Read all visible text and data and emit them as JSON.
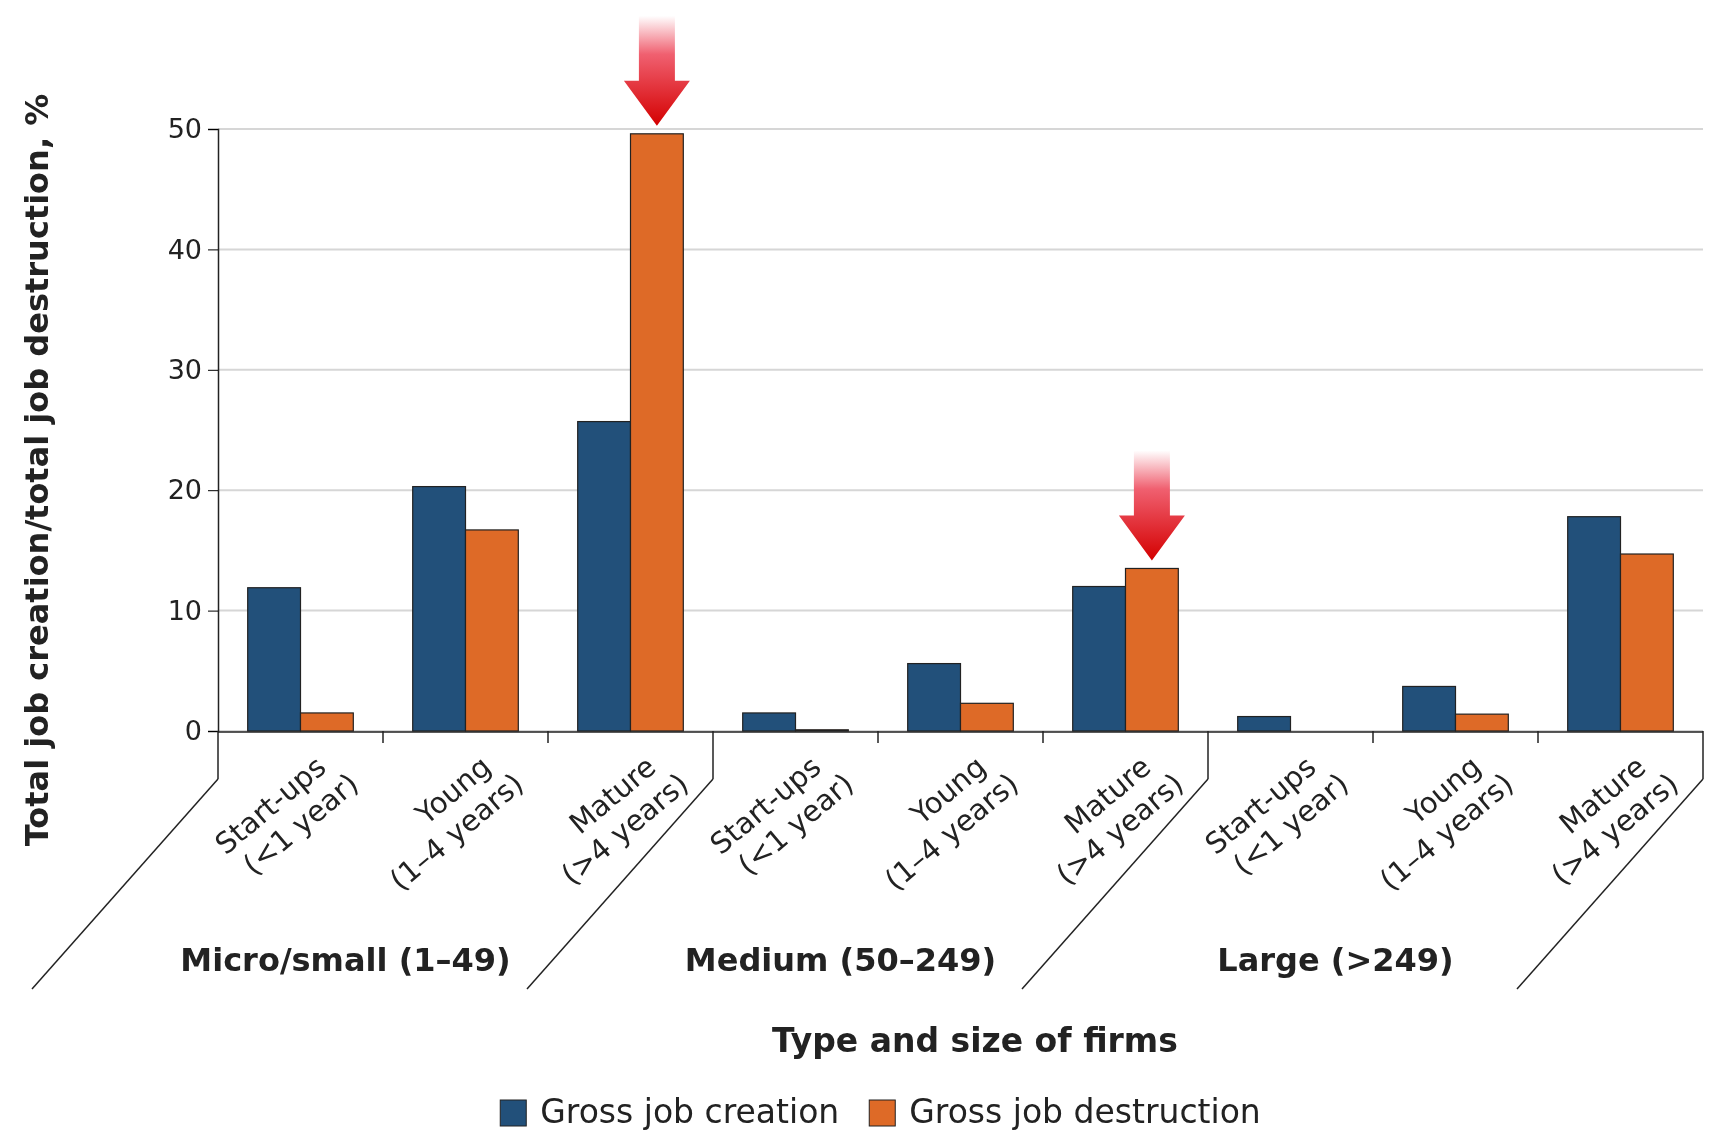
{
  "chart_data": {
    "type": "bar",
    "xlabel": "Type and size of firms",
    "ylabel": "Total job creation/total job destruction, %",
    "categories": [
      "Start-ups (<1 year)",
      "Young (1–4 years)",
      "Mature (>4 years)",
      "Start-ups (<1 year)",
      "Young (1–4 years)",
      "Mature (>4 years)",
      "Start-ups (<1 year)",
      "Young (1–4 years)",
      "Mature (>4 years)"
    ],
    "series": [
      {
        "name": "Gross job creation",
        "color": "#22507a",
        "values": [
          11.9,
          20.3,
          25.7,
          1.5,
          5.6,
          12.0,
          1.2,
          3.7,
          17.8
        ]
      },
      {
        "name": "Gross job destruction",
        "color": "#de6a27",
        "values": [
          1.5,
          16.7,
          49.6,
          0.1,
          2.3,
          13.5,
          0,
          1.4,
          14.7
        ]
      }
    ],
    "annotations": [
      "Micro/small (1–49)",
      "Medium (50–249)",
      "Large (>249)"
    ],
    "ylim": [
      0,
      50
    ],
    "yticks": [
      0,
      10,
      20,
      30,
      40,
      50
    ],
    "grid": "y",
    "legend": "bottom"
  }
}
